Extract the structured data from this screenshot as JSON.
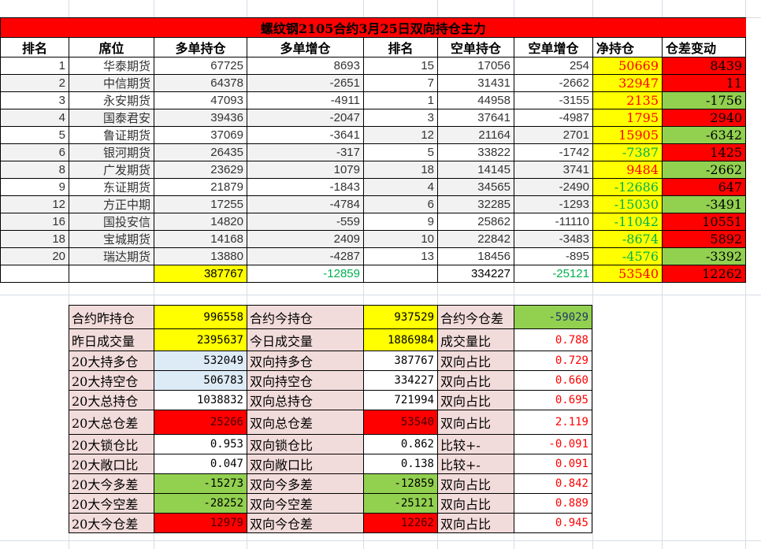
{
  "title": "螺纹钢2105合约3月25日双向持仓主力",
  "headers": [
    "排名",
    "席位",
    "多单持仓",
    "多单增仓",
    "排名",
    "空单持仓",
    "空单增仓",
    "净持仓",
    "仓差变动"
  ],
  "colors": {
    "red": "#ff0000",
    "green": "#92d050",
    "yellow": "#ffff00",
    "pink": "#f2dcdb",
    "net_positive_text": "#ff0000",
    "net_negative_text": "#00b050"
  },
  "rows": [
    {
      "rank": "1",
      "seat": "华泰期货",
      "long": "67725",
      "long_chg": "8693",
      "short_rank": "15",
      "short": "17056",
      "short_chg": "254",
      "net": "50669",
      "diff": "8439",
      "lg": false,
      "rg": false
    },
    {
      "rank": "2",
      "seat": "中信期货",
      "long": "64378",
      "long_chg": "-2651",
      "short_rank": "7",
      "short": "31431",
      "short_chg": "-2662",
      "net": "32947",
      "diff": "11",
      "lg": true,
      "rg": false
    },
    {
      "rank": "3",
      "seat": "永安期货",
      "long": "47093",
      "long_chg": "-4911",
      "short_rank": "1",
      "short": "44958",
      "short_chg": "-3155",
      "net": "2135",
      "diff": "-1756",
      "lg": false,
      "rg": false
    },
    {
      "rank": "4",
      "seat": "国泰君安",
      "long": "39436",
      "long_chg": "-2047",
      "short_rank": "3",
      "short": "37641",
      "short_chg": "-4987",
      "net": "1795",
      "diff": "2940",
      "lg": true,
      "rg": false
    },
    {
      "rank": "5",
      "seat": "鲁证期货",
      "long": "37069",
      "long_chg": "-3641",
      "short_rank": "12",
      "short": "21164",
      "short_chg": "2701",
      "net": "15905",
      "diff": "-6342",
      "lg": false,
      "rg": true
    },
    {
      "rank": "6",
      "seat": "银河期货",
      "long": "26435",
      "long_chg": "-317",
      "short_rank": "5",
      "short": "33822",
      "short_chg": "-1742",
      "net": "-7387",
      "diff": "1425",
      "lg": true,
      "rg": false
    },
    {
      "rank": "8",
      "seat": "广发期货",
      "long": "23629",
      "long_chg": "1079",
      "short_rank": "18",
      "short": "14145",
      "short_chg": "3741",
      "net": "9484",
      "diff": "-2662",
      "lg": true,
      "rg": true
    },
    {
      "rank": "9",
      "seat": "东证期货",
      "long": "21879",
      "long_chg": "-1843",
      "short_rank": "4",
      "short": "34565",
      "short_chg": "-2490",
      "net": "-12686",
      "diff": "647",
      "lg": false,
      "rg": true
    },
    {
      "rank": "12",
      "seat": "方正中期",
      "long": "17255",
      "long_chg": "-4784",
      "short_rank": "6",
      "short": "32285",
      "short_chg": "-1293",
      "net": "-15030",
      "diff": "-3491",
      "lg": true,
      "rg": true
    },
    {
      "rank": "16",
      "seat": "国投安信",
      "long": "14820",
      "long_chg": "-559",
      "short_rank": "9",
      "short": "25862",
      "short_chg": "-11110",
      "net": "-11042",
      "diff": "10551",
      "lg": true,
      "rg": false
    },
    {
      "rank": "18",
      "seat": "宝城期货",
      "long": "14168",
      "long_chg": "2409",
      "short_rank": "10",
      "short": "22842",
      "short_chg": "-3483",
      "net": "-8674",
      "diff": "5892",
      "lg": true,
      "rg": true
    },
    {
      "rank": "20",
      "seat": "瑞达期货",
      "long": "13880",
      "long_chg": "-4287",
      "short_rank": "13",
      "short": "18456",
      "short_chg": "-895",
      "net": "-4576",
      "diff": "-3392",
      "lg": true,
      "rg": false
    }
  ],
  "totals": {
    "long": "387767",
    "long_chg": "-12859",
    "short": "334227",
    "short_chg": "-25121",
    "net": "53540",
    "diff": "12262"
  },
  "summary": [
    {
      "l1": "合约昨持仓",
      "v1": "996558",
      "c1": "yel",
      "l2": "合约今持仓",
      "v2": "937529",
      "c2": "yel",
      "l3": "合约今仓差",
      "v3": "-59029",
      "c3": "grn"
    },
    {
      "l1": "昨日成交量",
      "v1": "2395637",
      "c1": "yel",
      "l2": "今日成交量",
      "v2": "1886984",
      "c2": "yel",
      "l3": "成交量比",
      "v3": "0.788",
      "c3": ""
    },
    {
      "l1": "20大持多仓",
      "v1": "532049",
      "c1": "lblue",
      "l2": "双向持多仓",
      "v2": "387767",
      "c2": "",
      "l3": "双向占比",
      "v3": "0.729",
      "c3": ""
    },
    {
      "l1": "20大持空仓",
      "v1": "506783",
      "c1": "lblue",
      "l2": "双向持空仓",
      "v2": "334227",
      "c2": "",
      "l3": "双向占比",
      "v3": "0.660",
      "c3": ""
    },
    {
      "l1": "20大总持仓",
      "v1": "1038832",
      "c1": "",
      "l2": "双向总持仓",
      "v2": "721994",
      "c2": "",
      "l3": "双向占比",
      "v3": "0.695",
      "c3": ""
    },
    {
      "l1": "20大总仓差",
      "v1": "25266",
      "c1": "red",
      "l2": "双向总仓差",
      "v2": "53540",
      "c2": "red",
      "l3": "双向占比",
      "v3": "2.119",
      "c3": ""
    },
    {
      "l1": "20大锁仓比",
      "v1": "0.953",
      "c1": "",
      "l2": "双向锁仓比",
      "v2": "0.862",
      "c2": "",
      "l3": "比较+-",
      "v3": "-0.091",
      "c3": ""
    },
    {
      "l1": "20大敞口比",
      "v1": "0.047",
      "c1": "",
      "l2": "双向敞口比",
      "v2": "0.138",
      "c2": "",
      "l3": "比较+-",
      "v3": "0.091",
      "c3": ""
    },
    {
      "l1": "20大今多差",
      "v1": "-15273",
      "c1": "grn",
      "l2": "双向今多差",
      "v2": "-12859",
      "c2": "grn",
      "l3": "双向占比",
      "v3": "0.842",
      "c3": ""
    },
    {
      "l1": "20大今空差",
      "v1": "-28252",
      "c1": "grn",
      "l2": "双向今空差",
      "v2": "-25121",
      "c2": "grn",
      "l3": "双向占比",
      "v3": "0.889",
      "c3": ""
    },
    {
      "l1": "20大今仓差",
      "v1": "12979",
      "c1": "red",
      "l2": "双向今仓差",
      "v2": "12262",
      "c2": "red",
      "l3": "双向占比",
      "v3": "0.945",
      "c3": ""
    }
  ]
}
